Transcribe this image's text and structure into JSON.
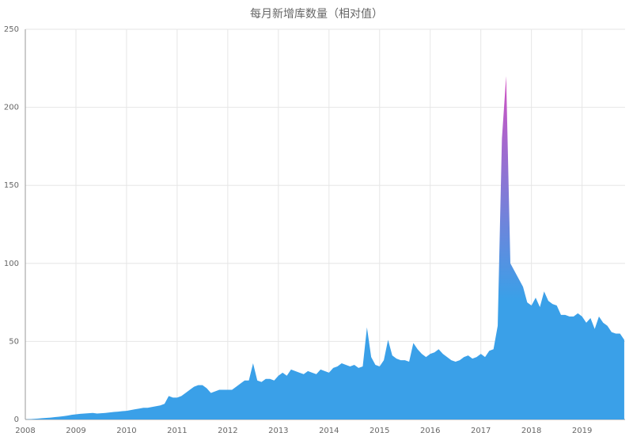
{
  "chart_data": {
    "type": "area",
    "title": "每月新增库数量（相对值）",
    "x": [
      "2008-01",
      "2008-02",
      "2008-03",
      "2008-04",
      "2008-05",
      "2008-06",
      "2008-07",
      "2008-08",
      "2008-09",
      "2008-10",
      "2008-11",
      "2008-12",
      "2009-01",
      "2009-02",
      "2009-03",
      "2009-04",
      "2009-05",
      "2009-06",
      "2009-07",
      "2009-08",
      "2009-09",
      "2009-10",
      "2009-11",
      "2009-12",
      "2010-01",
      "2010-02",
      "2010-03",
      "2010-04",
      "2010-05",
      "2010-06",
      "2010-07",
      "2010-08",
      "2010-09",
      "2010-10",
      "2010-11",
      "2010-12",
      "2011-01",
      "2011-02",
      "2011-03",
      "2011-04",
      "2011-05",
      "2011-06",
      "2011-07",
      "2011-08",
      "2011-09",
      "2011-10",
      "2011-11",
      "2011-12",
      "2012-01",
      "2012-02",
      "2012-03",
      "2012-04",
      "2012-05",
      "2012-06",
      "2012-07",
      "2012-08",
      "2012-09",
      "2012-10",
      "2012-11",
      "2012-12",
      "2013-01",
      "2013-02",
      "2013-03",
      "2013-04",
      "2013-05",
      "2013-06",
      "2013-07",
      "2013-08",
      "2013-09",
      "2013-10",
      "2013-11",
      "2013-12",
      "2014-01",
      "2014-02",
      "2014-03",
      "2014-04",
      "2014-05",
      "2014-06",
      "2014-07",
      "2014-08",
      "2014-09",
      "2014-10",
      "2014-11",
      "2014-12",
      "2015-01",
      "2015-02",
      "2015-03",
      "2015-04",
      "2015-05",
      "2015-06",
      "2015-07",
      "2015-08",
      "2015-09",
      "2015-10",
      "2015-11",
      "2015-12",
      "2016-01",
      "2016-02",
      "2016-03",
      "2016-04",
      "2016-05",
      "2016-06",
      "2016-07",
      "2016-08",
      "2016-09",
      "2016-10",
      "2016-11",
      "2016-12",
      "2017-01",
      "2017-02",
      "2017-03",
      "2017-04",
      "2017-05",
      "2017-06",
      "2017-07",
      "2017-08",
      "2017-09",
      "2017-10",
      "2017-11",
      "2017-12",
      "2018-01",
      "2018-02",
      "2018-03",
      "2018-04",
      "2018-05",
      "2018-06",
      "2018-07",
      "2018-08",
      "2018-09",
      "2018-10",
      "2018-11",
      "2018-12",
      "2019-01",
      "2019-02",
      "2019-03",
      "2019-04",
      "2019-05",
      "2019-06",
      "2019-07",
      "2019-08",
      "2019-09",
      "2019-10",
      "2019-11"
    ],
    "values": [
      0,
      0.2,
      0.4,
      0.6,
      0.8,
      1,
      1.2,
      1.5,
      1.8,
      2.1,
      2.5,
      3,
      3.3,
      3.6,
      3.8,
      4,
      4.2,
      3.8,
      4,
      4.2,
      4.5,
      4.8,
      5,
      5.3,
      5.5,
      6,
      6.5,
      7,
      7.5,
      7.5,
      8,
      8.5,
      9,
      10,
      15,
      14,
      14,
      15,
      17,
      19,
      21,
      22,
      22,
      20,
      17,
      18,
      19,
      19,
      19,
      19,
      21,
      23,
      25,
      25,
      36,
      25,
      24,
      26,
      26,
      25,
      28,
      30,
      28,
      32,
      31,
      30,
      29,
      31,
      30,
      29,
      32,
      31,
      30,
      33,
      34,
      36,
      35,
      34,
      35,
      33,
      34,
      59,
      40,
      35,
      34,
      38,
      51,
      41,
      39,
      38,
      38,
      37,
      49,
      45,
      42,
      40,
      42,
      43,
      45,
      42,
      40,
      38,
      37,
      38,
      40,
      41,
      39,
      40,
      42,
      40,
      44,
      45,
      60,
      180,
      220,
      100,
      95,
      90,
      85,
      75,
      73,
      78,
      72,
      82,
      76,
      74,
      73,
      67,
      67,
      66,
      66,
      68,
      66,
      62,
      65,
      58,
      66,
      62,
      60,
      56,
      55,
      55,
      51
    ],
    "color_start": "#3aa0e8",
    "color_end": "#d250c2",
    "xlim": [
      2008,
      2019.85
    ],
    "xticks": [
      2008,
      2009,
      2010,
      2011,
      2012,
      2013,
      2014,
      2015,
      2016,
      2017,
      2018,
      2019
    ],
    "ylim": [
      0,
      250
    ],
    "yticks": [
      0,
      50,
      100,
      150,
      200,
      250
    ],
    "grid": true
  }
}
